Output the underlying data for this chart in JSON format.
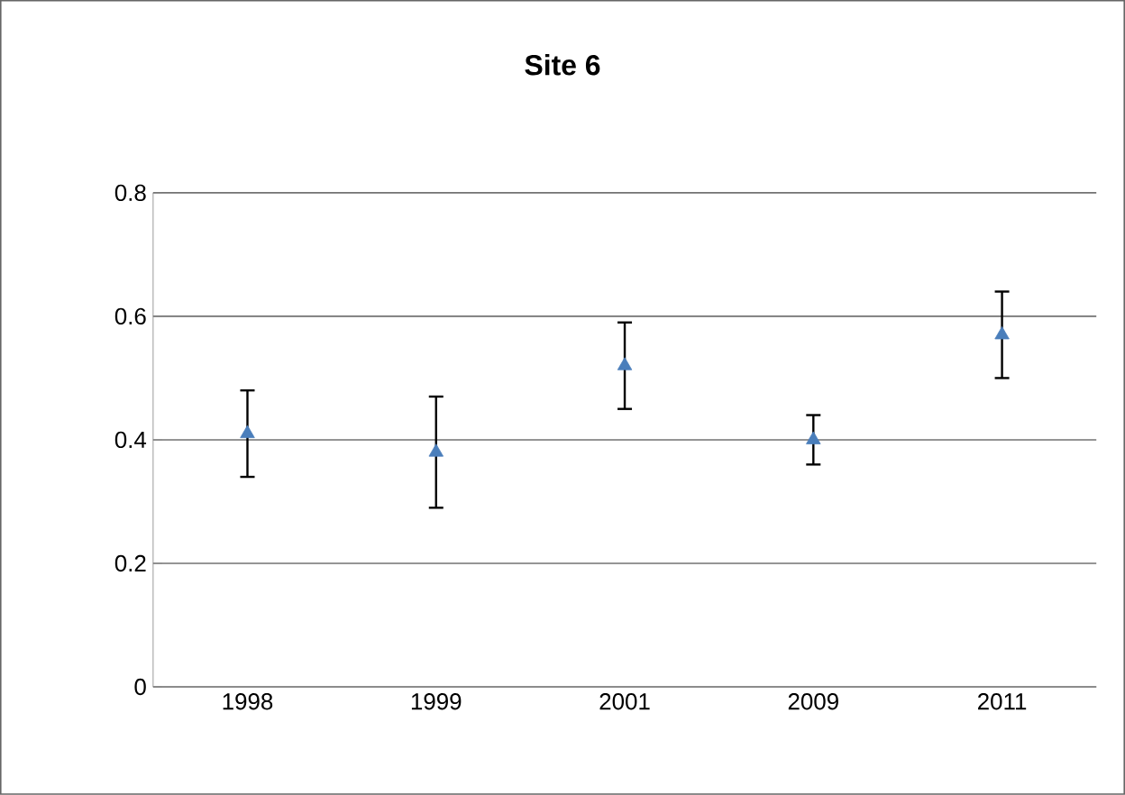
{
  "chart_data": {
    "type": "scatter",
    "title": "**Site 6**",
    "categories": [
      "1998",
      "1999",
      "2001",
      "2009",
      "2011"
    ],
    "series": [
      {
        "color": "#4a7ebb",
        "values": [
          0.41,
          0.38,
          0.52,
          0.4,
          0.57
        ],
        "errors": [
          [
            0.34,
            0.48
          ],
          [
            0.29,
            0.47
          ],
          [
            0.45,
            0.59
          ],
          [
            0.36,
            0.44
          ],
          [
            0.5,
            0.64
          ]
        ]
      }
    ],
    "marker": "triangle",
    "ylim": [
      0,
      0.8
    ],
    "yticks": [
      0,
      0.2,
      0.4,
      0.6,
      0.8
    ],
    "grid": "y"
  }
}
